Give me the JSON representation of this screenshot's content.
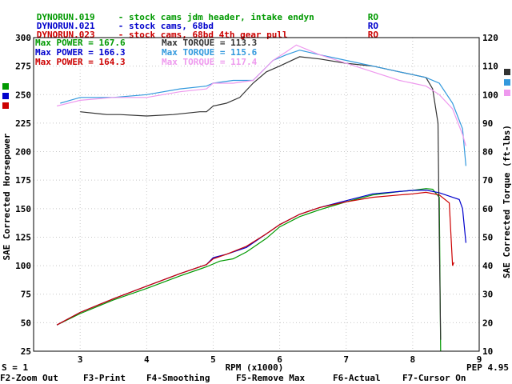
{
  "runs": [
    {
      "file": "DYNORUN.019",
      "desc": "- stock cams jdm header, intake endyn",
      "flag": "RO",
      "color": "#009900"
    },
    {
      "file": "DYNORUN.021",
      "desc": "- stock cams, 68bd",
      "flag": "RO",
      "color": "#0000cc"
    },
    {
      "file": "DYNORUN.023",
      "desc": "- stock cams, 68bd 4th gear pull",
      "flag": "RO",
      "color": "#cc0000"
    }
  ],
  "maxes": {
    "power": [
      {
        "label": "Max POWER = 167.6",
        "color": "#009900"
      },
      {
        "label": "Max POWER = 166.3",
        "color": "#0000cc"
      },
      {
        "label": "Max POWER = 164.3",
        "color": "#cc0000"
      }
    ],
    "torque": [
      {
        "label": "Max TORQUE = 113.3",
        "color": "#333333"
      },
      {
        "label": "Max TORQUE = 115.6",
        "color": "#3399dd"
      },
      {
        "label": "Max TORQUE = 117.4",
        "color": "#ee99ee"
      }
    ]
  },
  "status": {
    "s_value": "S = 1",
    "pep": "PEP 4.95"
  },
  "function_keys": [
    "F2-Zoom Out",
    "F3-Print",
    "F4-Smoothing",
    "F5-Remove Max",
    "F6-Actual",
    "F7-Cursor On"
  ],
  "chart_data": {
    "type": "line",
    "xlabel": "RPM (x1000)",
    "ylabel": "SAE Corrected Horsepower",
    "y2label": "SAE Corrected Torque (ft-lbs)",
    "x_ticks": [
      3,
      4,
      5,
      6,
      7,
      8,
      9
    ],
    "xlim": [
      2.3,
      9.0
    ],
    "ylim": [
      25,
      300
    ],
    "y_ticks": [
      25,
      50,
      75,
      100,
      125,
      150,
      175,
      200,
      225,
      250,
      275,
      300
    ],
    "y2lim": [
      10,
      120
    ],
    "y2_ticks": [
      10,
      20,
      30,
      40,
      50,
      60,
      70,
      80,
      90,
      100,
      110,
      120
    ],
    "grid": true,
    "series": [
      {
        "name": "DYNORUN.019",
        "kind": "power",
        "axis": "left",
        "color": "#009900",
        "x": [
          2.65,
          3.0,
          3.5,
          4.0,
          4.5,
          4.9,
          5.1,
          5.3,
          5.5,
          5.8,
          6.0,
          6.3,
          6.6,
          7.0,
          7.4,
          7.8,
          8.0,
          8.2,
          8.3,
          8.4,
          8.42
        ],
        "y": [
          48,
          58,
          70,
          80,
          91,
          99,
          104,
          106,
          112,
          124,
          134,
          143,
          149,
          156,
          162,
          165,
          166,
          167.6,
          167,
          160,
          25
        ]
      },
      {
        "name": "DYNORUN.021",
        "kind": "power",
        "axis": "left",
        "color": "#0000cc",
        "x": [
          2.65,
          3.0,
          3.5,
          4.0,
          4.5,
          4.9,
          5.0,
          5.2,
          5.5,
          5.8,
          6.0,
          6.3,
          6.6,
          7.0,
          7.4,
          7.8,
          8.0,
          8.2,
          8.4,
          8.6,
          8.7,
          8.75,
          8.8
        ],
        "y": [
          48,
          59,
          71,
          82,
          93,
          101,
          107,
          110,
          116,
          128,
          136,
          145,
          151,
          157,
          163,
          165,
          166,
          166.3,
          164,
          160,
          158,
          150,
          120
        ]
      },
      {
        "name": "DYNORUN.023",
        "kind": "power",
        "axis": "left",
        "color": "#cc0000",
        "x": [
          2.65,
          3.0,
          3.5,
          4.0,
          4.5,
          4.9,
          5.0,
          5.2,
          5.5,
          5.8,
          6.0,
          6.3,
          6.6,
          7.0,
          7.4,
          7.8,
          8.0,
          8.2,
          8.4,
          8.55,
          8.6,
          8.62
        ],
        "y": [
          48,
          59,
          71,
          82,
          93,
          101,
          106,
          110,
          117,
          128,
          136,
          145,
          151,
          156,
          160,
          162,
          163,
          164.3,
          162,
          155,
          100,
          103
        ]
      },
      {
        "name": "DYNORUN.019",
        "kind": "torque",
        "axis": "right",
        "color": "#333333",
        "x": [
          3.0,
          3.4,
          3.6,
          4.0,
          4.4,
          4.8,
          4.9,
          5.0,
          5.2,
          5.4,
          5.6,
          5.8,
          6.0,
          6.3,
          6.6,
          7.0,
          7.4,
          7.8,
          8.0,
          8.2,
          8.3,
          8.38,
          8.4,
          8.42
        ],
        "y": [
          94,
          93,
          93,
          92.5,
          93,
          94,
          94,
          96,
          97,
          99,
          104,
          108,
          110,
          113.3,
          112.5,
          111,
          110,
          108,
          107,
          106,
          102,
          90,
          50,
          14
        ]
      },
      {
        "name": "DYNORUN.021",
        "kind": "torque",
        "axis": "right",
        "color": "#3399dd",
        "x": [
          2.7,
          3.0,
          3.5,
          4.0,
          4.5,
          4.9,
          5.0,
          5.3,
          5.6,
          5.9,
          6.1,
          6.3,
          6.6,
          7.0,
          7.4,
          7.8,
          8.0,
          8.2,
          8.4,
          8.6,
          8.75,
          8.8
        ],
        "y": [
          97,
          99,
          99,
          100,
          102,
          103,
          104,
          105,
          105,
          112,
          114,
          115.6,
          114,
          112,
          110,
          108,
          107,
          106,
          104,
          97,
          88,
          75
        ]
      },
      {
        "name": "DYNORUN.023",
        "kind": "torque",
        "axis": "right",
        "color": "#ee99ee",
        "x": [
          2.65,
          3.0,
          3.5,
          4.0,
          4.5,
          4.9,
          5.0,
          5.3,
          5.6,
          5.9,
          6.1,
          6.25,
          6.6,
          7.0,
          7.4,
          7.8,
          8.0,
          8.2,
          8.4,
          8.6,
          8.75,
          8.8
        ],
        "y": [
          96,
          98,
          99,
          99,
          101,
          102,
          104,
          104,
          105,
          112,
          115,
          117.4,
          114,
          111,
          108,
          105,
          104,
          103,
          100,
          95,
          86,
          82
        ]
      }
    ]
  }
}
